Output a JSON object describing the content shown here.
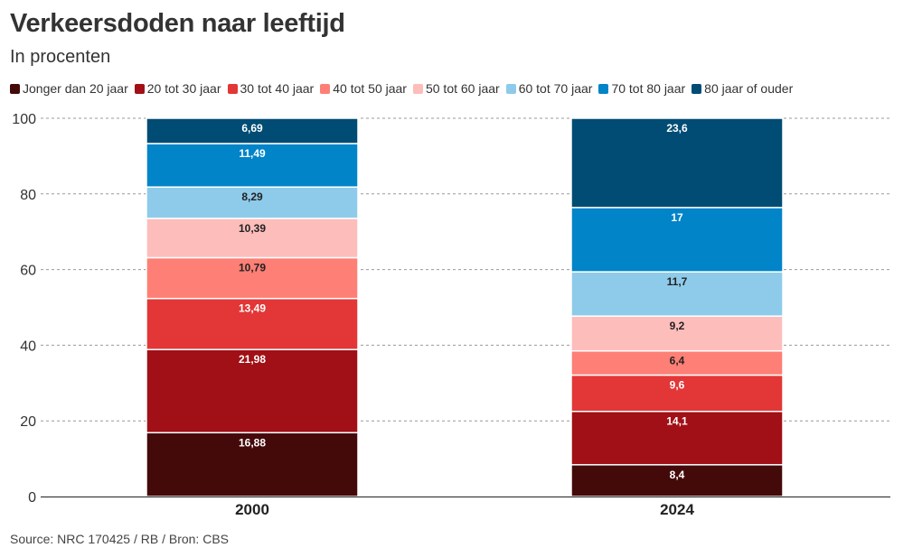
{
  "title": "Verkeersdoden naar leeftijd",
  "subtitle": "In procenten",
  "source": "Source: NRC 170425 / RB / Bron: CBS",
  "chart_data": {
    "type": "bar",
    "stacked": true,
    "categories": [
      "2000",
      "2024"
    ],
    "ylim": [
      0,
      100
    ],
    "yticks": [
      "0",
      "20",
      "40",
      "60",
      "80",
      "100"
    ],
    "grid": true,
    "legend_position": "top",
    "series": [
      {
        "name": "Jonger dan 20 jaar",
        "color": "#440a0a",
        "label_color": "#ffffff",
        "values": [
          16.88,
          8.4
        ],
        "labels": [
          "16,88",
          "8,4"
        ]
      },
      {
        "name": "20 tot 30 jaar",
        "color": "#a01016",
        "label_color": "#ffffff",
        "values": [
          21.98,
          14.1
        ],
        "labels": [
          "21,98",
          "14,1"
        ]
      },
      {
        "name": "30 tot 40 jaar",
        "color": "#e33636",
        "label_color": "#ffffff",
        "values": [
          13.49,
          9.6
        ],
        "labels": [
          "13,49",
          "9,6"
        ]
      },
      {
        "name": "40 tot 50 jaar",
        "color": "#fd7f75",
        "label_color": "#222222",
        "values": [
          10.79,
          6.4
        ],
        "labels": [
          "10,79",
          "6,4"
        ]
      },
      {
        "name": "50 tot 60 jaar",
        "color": "#fdbdbb",
        "label_color": "#222222",
        "values": [
          10.39,
          9.2
        ],
        "labels": [
          "10,39",
          "9,2"
        ]
      },
      {
        "name": "60 tot 70 jaar",
        "color": "#8ecbea",
        "label_color": "#222222",
        "values": [
          8.29,
          11.7
        ],
        "labels": [
          "8,29",
          "11,7"
        ]
      },
      {
        "name": "70 tot 80 jaar",
        "color": "#0184c8",
        "label_color": "#ffffff",
        "values": [
          11.49,
          17
        ],
        "labels": [
          "11,49",
          "17"
        ]
      },
      {
        "name": "80 jaar of ouder",
        "color": "#014c74",
        "label_color": "#ffffff",
        "values": [
          6.69,
          23.6
        ],
        "labels": [
          "6,69",
          "23,6"
        ]
      }
    ]
  }
}
